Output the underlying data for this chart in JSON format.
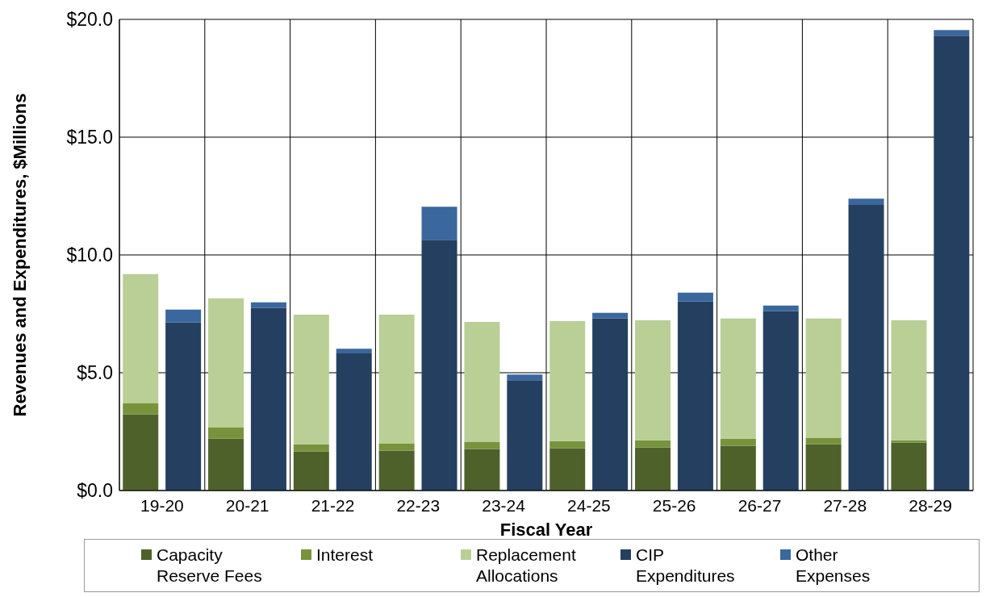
{
  "chart_data": {
    "type": "bar",
    "stacked": true,
    "xlabel": "Fiscal Year",
    "ylabel": "Revenues and Expenditures, $Millions",
    "categories": [
      "19-20",
      null,
      "20-21",
      null,
      "21-22",
      null,
      "22-23",
      null,
      "23-24",
      null,
      "24-25",
      null,
      "25-26",
      null,
      "26-27",
      null,
      "27-28",
      null,
      "28-29",
      null
    ],
    "series": [
      {
        "name": "Capacity Reserve Fees",
        "color": "#4f612b",
        "values": [
          3.24,
          null,
          2.2,
          null,
          1.65,
          null,
          1.69,
          null,
          1.76,
          null,
          1.79,
          null,
          1.82,
          null,
          1.89,
          null,
          1.96,
          null,
          2.03,
          null
        ]
      },
      {
        "name": "Interest",
        "color": "#77933c",
        "values": [
          0.48,
          null,
          0.49,
          null,
          0.31,
          null,
          0.31,
          null,
          0.31,
          null,
          0.31,
          null,
          0.31,
          null,
          0.31,
          null,
          0.28,
          null,
          0.1,
          null
        ]
      },
      {
        "name": "Replacement Allocations",
        "color": "#b9cf96",
        "values": [
          5.47,
          null,
          5.47,
          null,
          5.51,
          null,
          5.47,
          null,
          5.09,
          null,
          5.09,
          null,
          5.1,
          null,
          5.1,
          null,
          5.06,
          null,
          5.1,
          null
        ]
      },
      {
        "name": "CIP Expenditures",
        "color": "#243f60",
        "values": [
          null,
          7.13,
          null,
          7.75,
          null,
          5.82,
          null,
          10.64,
          null,
          4.68,
          null,
          7.3,
          null,
          8.02,
          null,
          7.61,
          null,
          12.12,
          null,
          19.31
        ]
      },
      {
        "name": "Other Expenses",
        "color": "#3a679d",
        "values": [
          null,
          0.55,
          null,
          0.24,
          null,
          0.2,
          null,
          1.41,
          null,
          0.24,
          null,
          0.24,
          null,
          0.38,
          null,
          0.24,
          null,
          0.27,
          null,
          0.24
        ]
      }
    ],
    "ylim": [
      0,
      20
    ],
    "yticks": [
      {
        "value": 0,
        "label": "$0.0"
      },
      {
        "value": 5,
        "label": "$5.0"
      },
      {
        "value": 10,
        "label": "$10.0"
      },
      {
        "value": 15,
        "label": "$15.0"
      },
      {
        "value": 20,
        "label": "$20.0"
      }
    ],
    "grid": true,
    "legend": "bottom"
  }
}
